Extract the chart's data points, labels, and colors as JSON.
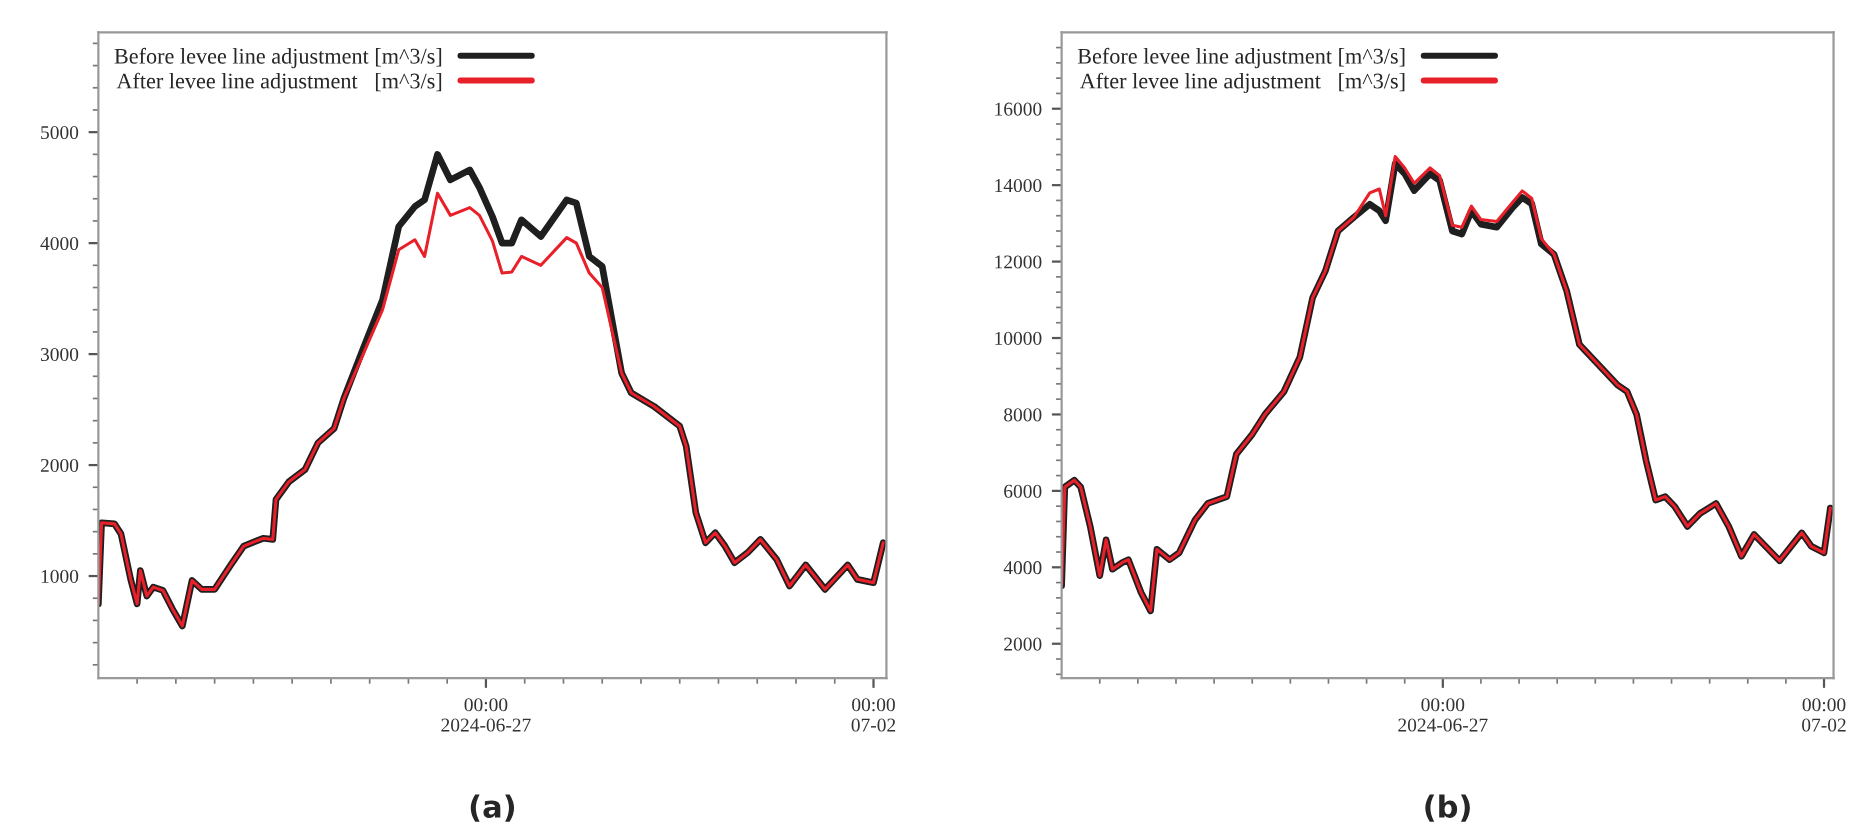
{
  "chart_data": [
    {
      "type": "line",
      "legend": "top left",
      "grid": false,
      "marker": "none",
      "line_style": "solid",
      "annotations": [
        "(a)"
      ],
      "xlim": [
        "2024-06-22T00:00",
        "2024-07-02T04:00"
      ],
      "xticks": [
        {
          "value": "2024-06-22T12:00",
          "label": null
        },
        {
          "value": "2024-06-23T00:00",
          "label": null
        },
        {
          "value": "2024-06-23T12:00",
          "label": null
        },
        {
          "value": "2024-06-24T00:00",
          "label": null
        },
        {
          "value": "2024-06-24T12:00",
          "label": null
        },
        {
          "value": "2024-06-25T00:00",
          "label": null
        },
        {
          "value": "2024-06-25T12:00",
          "label": null
        },
        {
          "value": "2024-06-26T00:00",
          "label": null
        },
        {
          "value": "2024-06-26T12:00",
          "label": null
        },
        {
          "value": "2024-06-27T00:00",
          "label": "00:00\n2024-06-27"
        },
        {
          "value": "2024-06-27T12:00",
          "label": null
        },
        {
          "value": "2024-06-28T00:00",
          "label": null
        },
        {
          "value": "2024-06-28T12:00",
          "label": null
        },
        {
          "value": "2024-06-29T00:00",
          "label": null
        },
        {
          "value": "2024-06-29T12:00",
          "label": null
        },
        {
          "value": "2024-06-30T00:00",
          "label": null
        },
        {
          "value": "2024-06-30T12:00",
          "label": null
        },
        {
          "value": "2024-07-01T00:00",
          "label": null
        },
        {
          "value": "2024-07-01T12:00",
          "label": null
        },
        {
          "value": "2024-07-02T00:00",
          "label": "00:00\n07-02"
        }
      ],
      "ylim": [
        80,
        5900
      ],
      "yticks": [
        {
          "value": 200,
          "label": null
        },
        {
          "value": 400,
          "label": null
        },
        {
          "value": 600,
          "label": null
        },
        {
          "value": 800,
          "label": null
        },
        1000,
        {
          "value": 1200,
          "label": null
        },
        {
          "value": 1400,
          "label": null
        },
        {
          "value": 1600,
          "label": null
        },
        {
          "value": 1800,
          "label": null
        },
        2000,
        {
          "value": 2200,
          "label": null
        },
        {
          "value": 2400,
          "label": null
        },
        {
          "value": 2600,
          "label": null
        },
        {
          "value": 2800,
          "label": null
        },
        3000,
        {
          "value": 3200,
          "label": null
        },
        {
          "value": 3400,
          "label": null
        },
        {
          "value": 3600,
          "label": null
        },
        {
          "value": 3800,
          "label": null
        },
        4000,
        {
          "value": 4200,
          "label": null
        },
        {
          "value": 4400,
          "label": null
        },
        {
          "value": 4600,
          "label": null
        },
        {
          "value": 4800,
          "label": null
        },
        5000,
        {
          "value": 5200,
          "label": null
        },
        {
          "value": 5400,
          "label": null
        },
        {
          "value": 5600,
          "label": null
        },
        {
          "value": 5800,
          "label": null
        }
      ],
      "x": [
        "2024-06-22T00:00",
        "2024-06-22T01:00",
        "2024-06-22T05:00",
        "2024-06-22T07:00",
        "2024-06-22T10:00",
        "2024-06-22T12:00",
        "2024-06-22T13:00",
        "2024-06-22T15:00",
        "2024-06-22T17:00",
        "2024-06-22T20:00",
        "2024-06-22T23:00",
        "2024-06-23T02:00",
        "2024-06-23T05:00",
        "2024-06-23T08:00",
        "2024-06-23T12:00",
        "2024-06-23T17:00",
        "2024-06-23T21:00",
        "2024-06-24T03:00",
        "2024-06-24T06:00",
        "2024-06-24T07:00",
        "2024-06-24T11:00",
        "2024-06-24T16:00",
        "2024-06-24T20:00",
        "2024-06-25T01:00",
        "2024-06-25T04:00",
        "2024-06-25T10:00",
        "2024-06-25T16:00",
        "2024-06-25T21:00",
        "2024-06-26T02:00",
        "2024-06-26T05:00",
        "2024-06-26T09:00",
        "2024-06-26T13:00",
        "2024-06-26T19:00",
        "2024-06-26T22:00",
        "2024-06-27T02:00",
        "2024-06-27T05:00",
        "2024-06-27T08:00",
        "2024-06-27T11:00",
        "2024-06-27T17:00",
        "2024-06-28T01:00",
        "2024-06-28T04:00",
        "2024-06-28T08:00",
        "2024-06-28T12:00",
        "2024-06-28T18:00",
        "2024-06-28T21:00",
        "2024-06-29T04:00",
        "2024-06-29T12:00",
        "2024-06-29T14:00",
        "2024-06-29T17:00",
        "2024-06-29T20:00",
        "2024-06-29T23:00",
        "2024-06-30T02:00",
        "2024-06-30T05:00",
        "2024-06-30T09:00",
        "2024-06-30T13:00",
        "2024-06-30T18:00",
        "2024-06-30T22:00",
        "2024-07-01T03:00",
        "2024-07-01T09:00",
        "2024-07-01T16:00",
        "2024-07-01T19:00",
        "2024-07-02T00:00",
        "2024-07-02T03:00"
      ],
      "series": [
        {
          "name": "Before levee line adjustment [m^3/s]",
          "color": "#1f1f1f",
          "values": [
            750,
            1480,
            1470,
            1380,
            970,
            750,
            1050,
            820,
            900,
            870,
            700,
            550,
            960,
            880,
            880,
            1100,
            1270,
            1340,
            1330,
            1690,
            1850,
            1960,
            2200,
            2330,
            2600,
            3050,
            3490,
            4150,
            4330,
            4390,
            4800,
            4570,
            4660,
            4500,
            4240,
            4000,
            4000,
            4210,
            4060,
            4390,
            4360,
            3880,
            3790,
            2830,
            2650,
            2530,
            2350,
            2170,
            1570,
            1300,
            1390,
            1270,
            1120,
            1210,
            1330,
            1150,
            910,
            1100,
            880,
            1100,
            970,
            940,
            1300
          ]
        },
        {
          "name": "After levee line adjustment   [m^3/s]",
          "color": "#e8202a",
          "values": [
            750,
            1480,
            1470,
            1380,
            970,
            750,
            1050,
            820,
            900,
            870,
            700,
            550,
            960,
            880,
            880,
            1100,
            1270,
            1340,
            1330,
            1690,
            1850,
            1960,
            2200,
            2330,
            2600,
            3000,
            3400,
            3940,
            4030,
            3880,
            4450,
            4250,
            4320,
            4250,
            4020,
            3730,
            3740,
            3880,
            3800,
            4050,
            4000,
            3730,
            3600,
            2830,
            2650,
            2530,
            2350,
            2170,
            1570,
            1300,
            1390,
            1270,
            1120,
            1210,
            1330,
            1150,
            910,
            1100,
            880,
            1100,
            970,
            940,
            1300
          ]
        }
      ]
    },
    {
      "type": "line",
      "legend": "top left",
      "grid": false,
      "marker": "none",
      "line_style": "solid",
      "annotations": [
        "(b)"
      ],
      "xlim": [
        "2024-06-22T00:00",
        "2024-07-02T03:00"
      ],
      "xticks": [
        {
          "value": "2024-06-22T12:00",
          "label": null
        },
        {
          "value": "2024-06-23T00:00",
          "label": null
        },
        {
          "value": "2024-06-23T12:00",
          "label": null
        },
        {
          "value": "2024-06-24T00:00",
          "label": null
        },
        {
          "value": "2024-06-24T12:00",
          "label": null
        },
        {
          "value": "2024-06-25T00:00",
          "label": null
        },
        {
          "value": "2024-06-25T12:00",
          "label": null
        },
        {
          "value": "2024-06-26T00:00",
          "label": null
        },
        {
          "value": "2024-06-26T12:00",
          "label": null
        },
        {
          "value": "2024-06-27T00:00",
          "label": "00:00\n2024-06-27"
        },
        {
          "value": "2024-06-27T12:00",
          "label": null
        },
        {
          "value": "2024-06-28T00:00",
          "label": null
        },
        {
          "value": "2024-06-28T12:00",
          "label": null
        },
        {
          "value": "2024-06-29T00:00",
          "label": null
        },
        {
          "value": "2024-06-29T12:00",
          "label": null
        },
        {
          "value": "2024-06-30T00:00",
          "label": null
        },
        {
          "value": "2024-06-30T12:00",
          "label": null
        },
        {
          "value": "2024-07-01T00:00",
          "label": null
        },
        {
          "value": "2024-07-01T12:00",
          "label": null
        },
        {
          "value": "2024-07-02T00:00",
          "label": "00:00\n07-02"
        }
      ],
      "ylim": [
        1100,
        18000
      ],
      "yticks": [
        {
          "value": 1200,
          "label": null
        },
        {
          "value": 1600,
          "label": null
        },
        2000,
        {
          "value": 2400,
          "label": null
        },
        {
          "value": 2800,
          "label": null
        },
        {
          "value": 3200,
          "label": null
        },
        {
          "value": 3600,
          "label": null
        },
        4000,
        {
          "value": 4400,
          "label": null
        },
        {
          "value": 4800,
          "label": null
        },
        {
          "value": 5200,
          "label": null
        },
        {
          "value": 5600,
          "label": null
        },
        6000,
        {
          "value": 6400,
          "label": null
        },
        {
          "value": 6800,
          "label": null
        },
        {
          "value": 7200,
          "label": null
        },
        {
          "value": 7600,
          "label": null
        },
        8000,
        {
          "value": 8400,
          "label": null
        },
        {
          "value": 8800,
          "label": null
        },
        {
          "value": 9200,
          "label": null
        },
        {
          "value": 9600,
          "label": null
        },
        10000,
        {
          "value": 10400,
          "label": null
        },
        {
          "value": 10800,
          "label": null
        },
        {
          "value": 11200,
          "label": null
        },
        {
          "value": 11600,
          "label": null
        },
        12000,
        {
          "value": 12400,
          "label": null
        },
        {
          "value": 12800,
          "label": null
        },
        {
          "value": 13200,
          "label": null
        },
        {
          "value": 13600,
          "label": null
        },
        14000,
        {
          "value": 14400,
          "label": null
        },
        {
          "value": 14800,
          "label": null
        },
        {
          "value": 15200,
          "label": null
        },
        {
          "value": 15600,
          "label": null
        },
        16000,
        {
          "value": 16400,
          "label": null
        },
        {
          "value": 16800,
          "label": null
        },
        {
          "value": 17200,
          "label": null
        },
        {
          "value": 17600,
          "label": null
        }
      ],
      "x": [
        "2024-06-22T00:00",
        "2024-06-22T01:00",
        "2024-06-22T04:00",
        "2024-06-22T06:00",
        "2024-06-22T09:00",
        "2024-06-22T12:00",
        "2024-06-22T14:00",
        "2024-06-22T16:00",
        "2024-06-22T19:00",
        "2024-06-22T21:00",
        "2024-06-23T01:00",
        "2024-06-23T04:00",
        "2024-06-23T06:00",
        "2024-06-23T10:00",
        "2024-06-23T13:00",
        "2024-06-23T18:00",
        "2024-06-23T22:00",
        "2024-06-24T04:00",
        "2024-06-24T07:00",
        "2024-06-24T12:00",
        "2024-06-24T16:00",
        "2024-06-24T22:00",
        "2024-06-25T03:00",
        "2024-06-25T07:00",
        "2024-06-25T11:00",
        "2024-06-25T15:00",
        "2024-06-25T20:00",
        "2024-06-26T01:00",
        "2024-06-26T04:00",
        "2024-06-26T06:00",
        "2024-06-26T09:00",
        "2024-06-26T12:00",
        "2024-06-26T15:00",
        "2024-06-26T20:00",
        "2024-06-26T23:00",
        "2024-06-27T03:00",
        "2024-06-27T06:00",
        "2024-06-27T09:00",
        "2024-06-27T12:00",
        "2024-06-27T17:00",
        "2024-06-27T22:00",
        "2024-06-28T01:00",
        "2024-06-28T04:00",
        "2024-06-28T07:00",
        "2024-06-28T11:00",
        "2024-06-28T15:00",
        "2024-06-28T19:00",
        "2024-06-29T01:00",
        "2024-06-29T07:00",
        "2024-06-29T10:00",
        "2024-06-29T13:00",
        "2024-06-29T16:00",
        "2024-06-29T19:00",
        "2024-06-29T22:00",
        "2024-06-30T01:00",
        "2024-06-30T05:00",
        "2024-06-30T09:00",
        "2024-06-30T14:00",
        "2024-06-30T18:00",
        "2024-06-30T22:00",
        "2024-07-01T02:00",
        "2024-07-01T10:00",
        "2024-07-01T17:00",
        "2024-07-01T20:00",
        "2024-07-02T00:00",
        "2024-07-02T02:00"
      ],
      "series": [
        {
          "name": "Before levee line adjustment [m^3/s]",
          "color": "#1f1f1f",
          "values": [
            3520,
            6100,
            6280,
            6100,
            5070,
            3780,
            4720,
            3950,
            4120,
            4200,
            3340,
            2860,
            4470,
            4200,
            4380,
            5240,
            5670,
            5850,
            6960,
            7480,
            8000,
            8600,
            9500,
            11050,
            11750,
            12800,
            13160,
            13500,
            13330,
            13070,
            14560,
            14300,
            13860,
            14300,
            14120,
            12800,
            12720,
            13330,
            12980,
            12900,
            13420,
            13680,
            13510,
            12460,
            12190,
            11230,
            9830,
            9300,
            8770,
            8600,
            8000,
            6790,
            5760,
            5850,
            5590,
            5070,
            5410,
            5670,
            5070,
            4290,
            4860,
            4170,
            4900,
            4550,
            4380,
            5550
          ]
        },
        {
          "name": "After levee line adjustment   [m^3/s]",
          "color": "#e8202a",
          "values": [
            3520,
            6100,
            6280,
            6100,
            5070,
            3780,
            4720,
            3950,
            4120,
            4200,
            3340,
            2860,
            4470,
            4200,
            4380,
            5240,
            5670,
            5850,
            6960,
            7480,
            8000,
            8600,
            9500,
            11050,
            11750,
            12800,
            13160,
            13800,
            13900,
            13200,
            14750,
            14450,
            14050,
            14450,
            14250,
            12950,
            12900,
            13450,
            13100,
            13050,
            13550,
            13850,
            13650,
            12600,
            12190,
            11230,
            9830,
            9300,
            8770,
            8600,
            8000,
            6790,
            5760,
            5850,
            5590,
            5070,
            5410,
            5670,
            5070,
            4290,
            4860,
            4170,
            4900,
            4550,
            4380,
            5550
          ]
        }
      ]
    }
  ]
}
